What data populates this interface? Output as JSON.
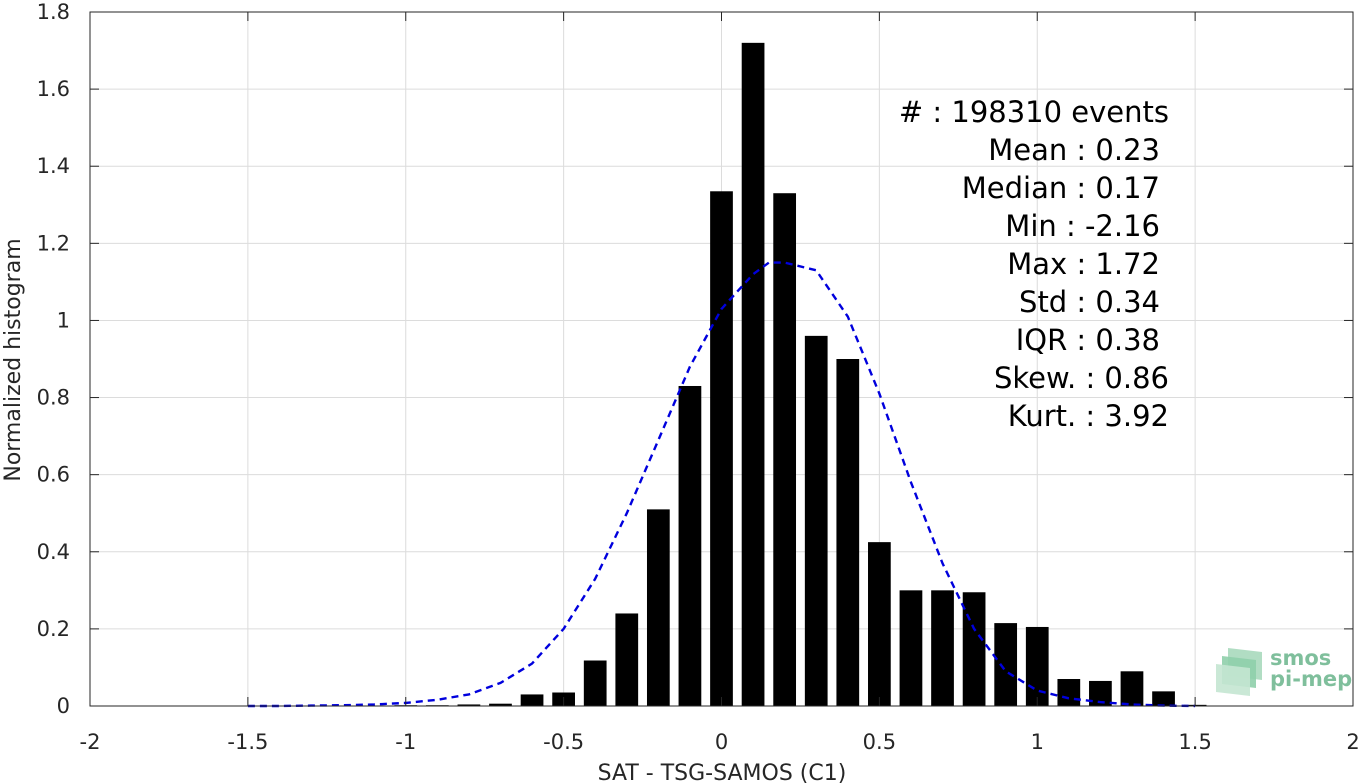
{
  "chart_data": {
    "type": "bar",
    "xlabel": "SAT - TSG-SAMOS (C1)",
    "ylabel": "Normalized histogram",
    "xlim": [
      -2,
      2
    ],
    "ylim": [
      0,
      1.8
    ],
    "xticks": [
      -2,
      -1.5,
      -1,
      -0.5,
      0,
      0.5,
      1,
      1.5,
      2
    ],
    "xtick_labels": [
      "-2",
      "-1.5",
      "-1",
      "-0.5",
      "0",
      "0.5",
      "1",
      "1.5",
      "2"
    ],
    "yticks": [
      0,
      0.2,
      0.4,
      0.6,
      0.8,
      1,
      1.2,
      1.4,
      1.6,
      1.8
    ],
    "ytick_labels": [
      "0",
      "0.2",
      "0.4",
      "0.6",
      "0.8",
      "1",
      "1.2",
      "1.4",
      "1.6",
      "1.8"
    ],
    "grid": true,
    "bar_color": "#000000",
    "bar_centers": [
      -1.5,
      -1.4,
      -1.3,
      -1.2,
      -1.1,
      -1.0,
      -0.9,
      -0.8,
      -0.7,
      -0.6,
      -0.5,
      -0.4,
      -0.3,
      -0.2,
      -0.1,
      0.0,
      0.1,
      0.2,
      0.3,
      0.4,
      0.5,
      0.6,
      0.7,
      0.8,
      0.9,
      1.0,
      1.1,
      1.2,
      1.3,
      1.4,
      1.5
    ],
    "bar_values": [
      0.001,
      0.001,
      0.001,
      0.001,
      0.001,
      0.002,
      0.002,
      0.004,
      0.006,
      0.03,
      0.035,
      0.118,
      0.24,
      0.51,
      0.83,
      1.335,
      1.72,
      1.33,
      0.96,
      0.9,
      0.425,
      0.3,
      0.3,
      0.295,
      0.215,
      0.205,
      0.07,
      0.065,
      0.09,
      0.038,
      0.003
    ],
    "fit_curve": {
      "style": "dashed",
      "color": "#0000dd",
      "x": [
        -1.5,
        -1.4,
        -1.3,
        -1.2,
        -1.1,
        -1.0,
        -0.9,
        -0.8,
        -0.7,
        -0.6,
        -0.5,
        -0.4,
        -0.3,
        -0.2,
        -0.1,
        0.0,
        0.1,
        0.15,
        0.2,
        0.3,
        0.4,
        0.5,
        0.6,
        0.7,
        0.8,
        0.9,
        1.0,
        1.1,
        1.2,
        1.3,
        1.4,
        1.5
      ],
      "y": [
        0.0,
        0.0,
        0.001,
        0.002,
        0.004,
        0.008,
        0.016,
        0.03,
        0.06,
        0.11,
        0.2,
        0.33,
        0.5,
        0.69,
        0.88,
        1.03,
        1.12,
        1.15,
        1.15,
        1.13,
        1.01,
        0.81,
        0.58,
        0.37,
        0.2,
        0.09,
        0.04,
        0.02,
        0.01,
        0.004,
        0.001,
        0.0
      ]
    }
  },
  "stats": [
    {
      "label": "#  : 198310 events"
    },
    {
      "label": "Mean : 0.23"
    },
    {
      "label": "Median : 0.17"
    },
    {
      "label": "Min : -2.16"
    },
    {
      "label": "Max : 1.72"
    },
    {
      "label": "Std : 0.34"
    },
    {
      "label": "IQR : 0.38"
    },
    {
      "label": "Skew. : 0.86"
    },
    {
      "label": "Kurt. : 3.92"
    }
  ],
  "logo": {
    "line1": "smos",
    "line2": "pi-mep",
    "color": "#7fbf9c"
  }
}
